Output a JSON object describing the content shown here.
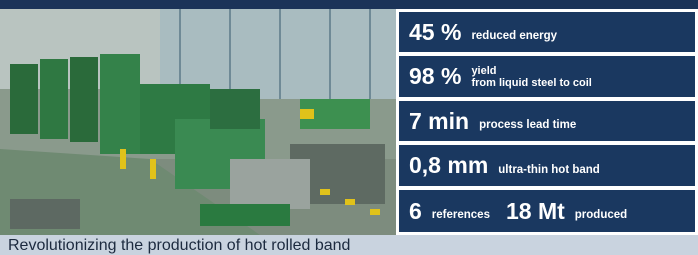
{
  "stats": [
    [
      {
        "value": "45 %",
        "label": "reduced energy"
      }
    ],
    [
      {
        "value": "98 %",
        "label": [
          "yield",
          "from liquid steel to coil"
        ]
      }
    ],
    [
      {
        "value": "7 min",
        "label": "process lead time"
      }
    ],
    [
      {
        "value": "0,8 mm",
        "label": "ultra-thin hot band"
      }
    ],
    [
      {
        "value": "6",
        "label": "references"
      },
      {
        "value": "18 Mt",
        "label": "produced"
      }
    ]
  ],
  "caption": "Revolutionizing the production of hot rolled band"
}
